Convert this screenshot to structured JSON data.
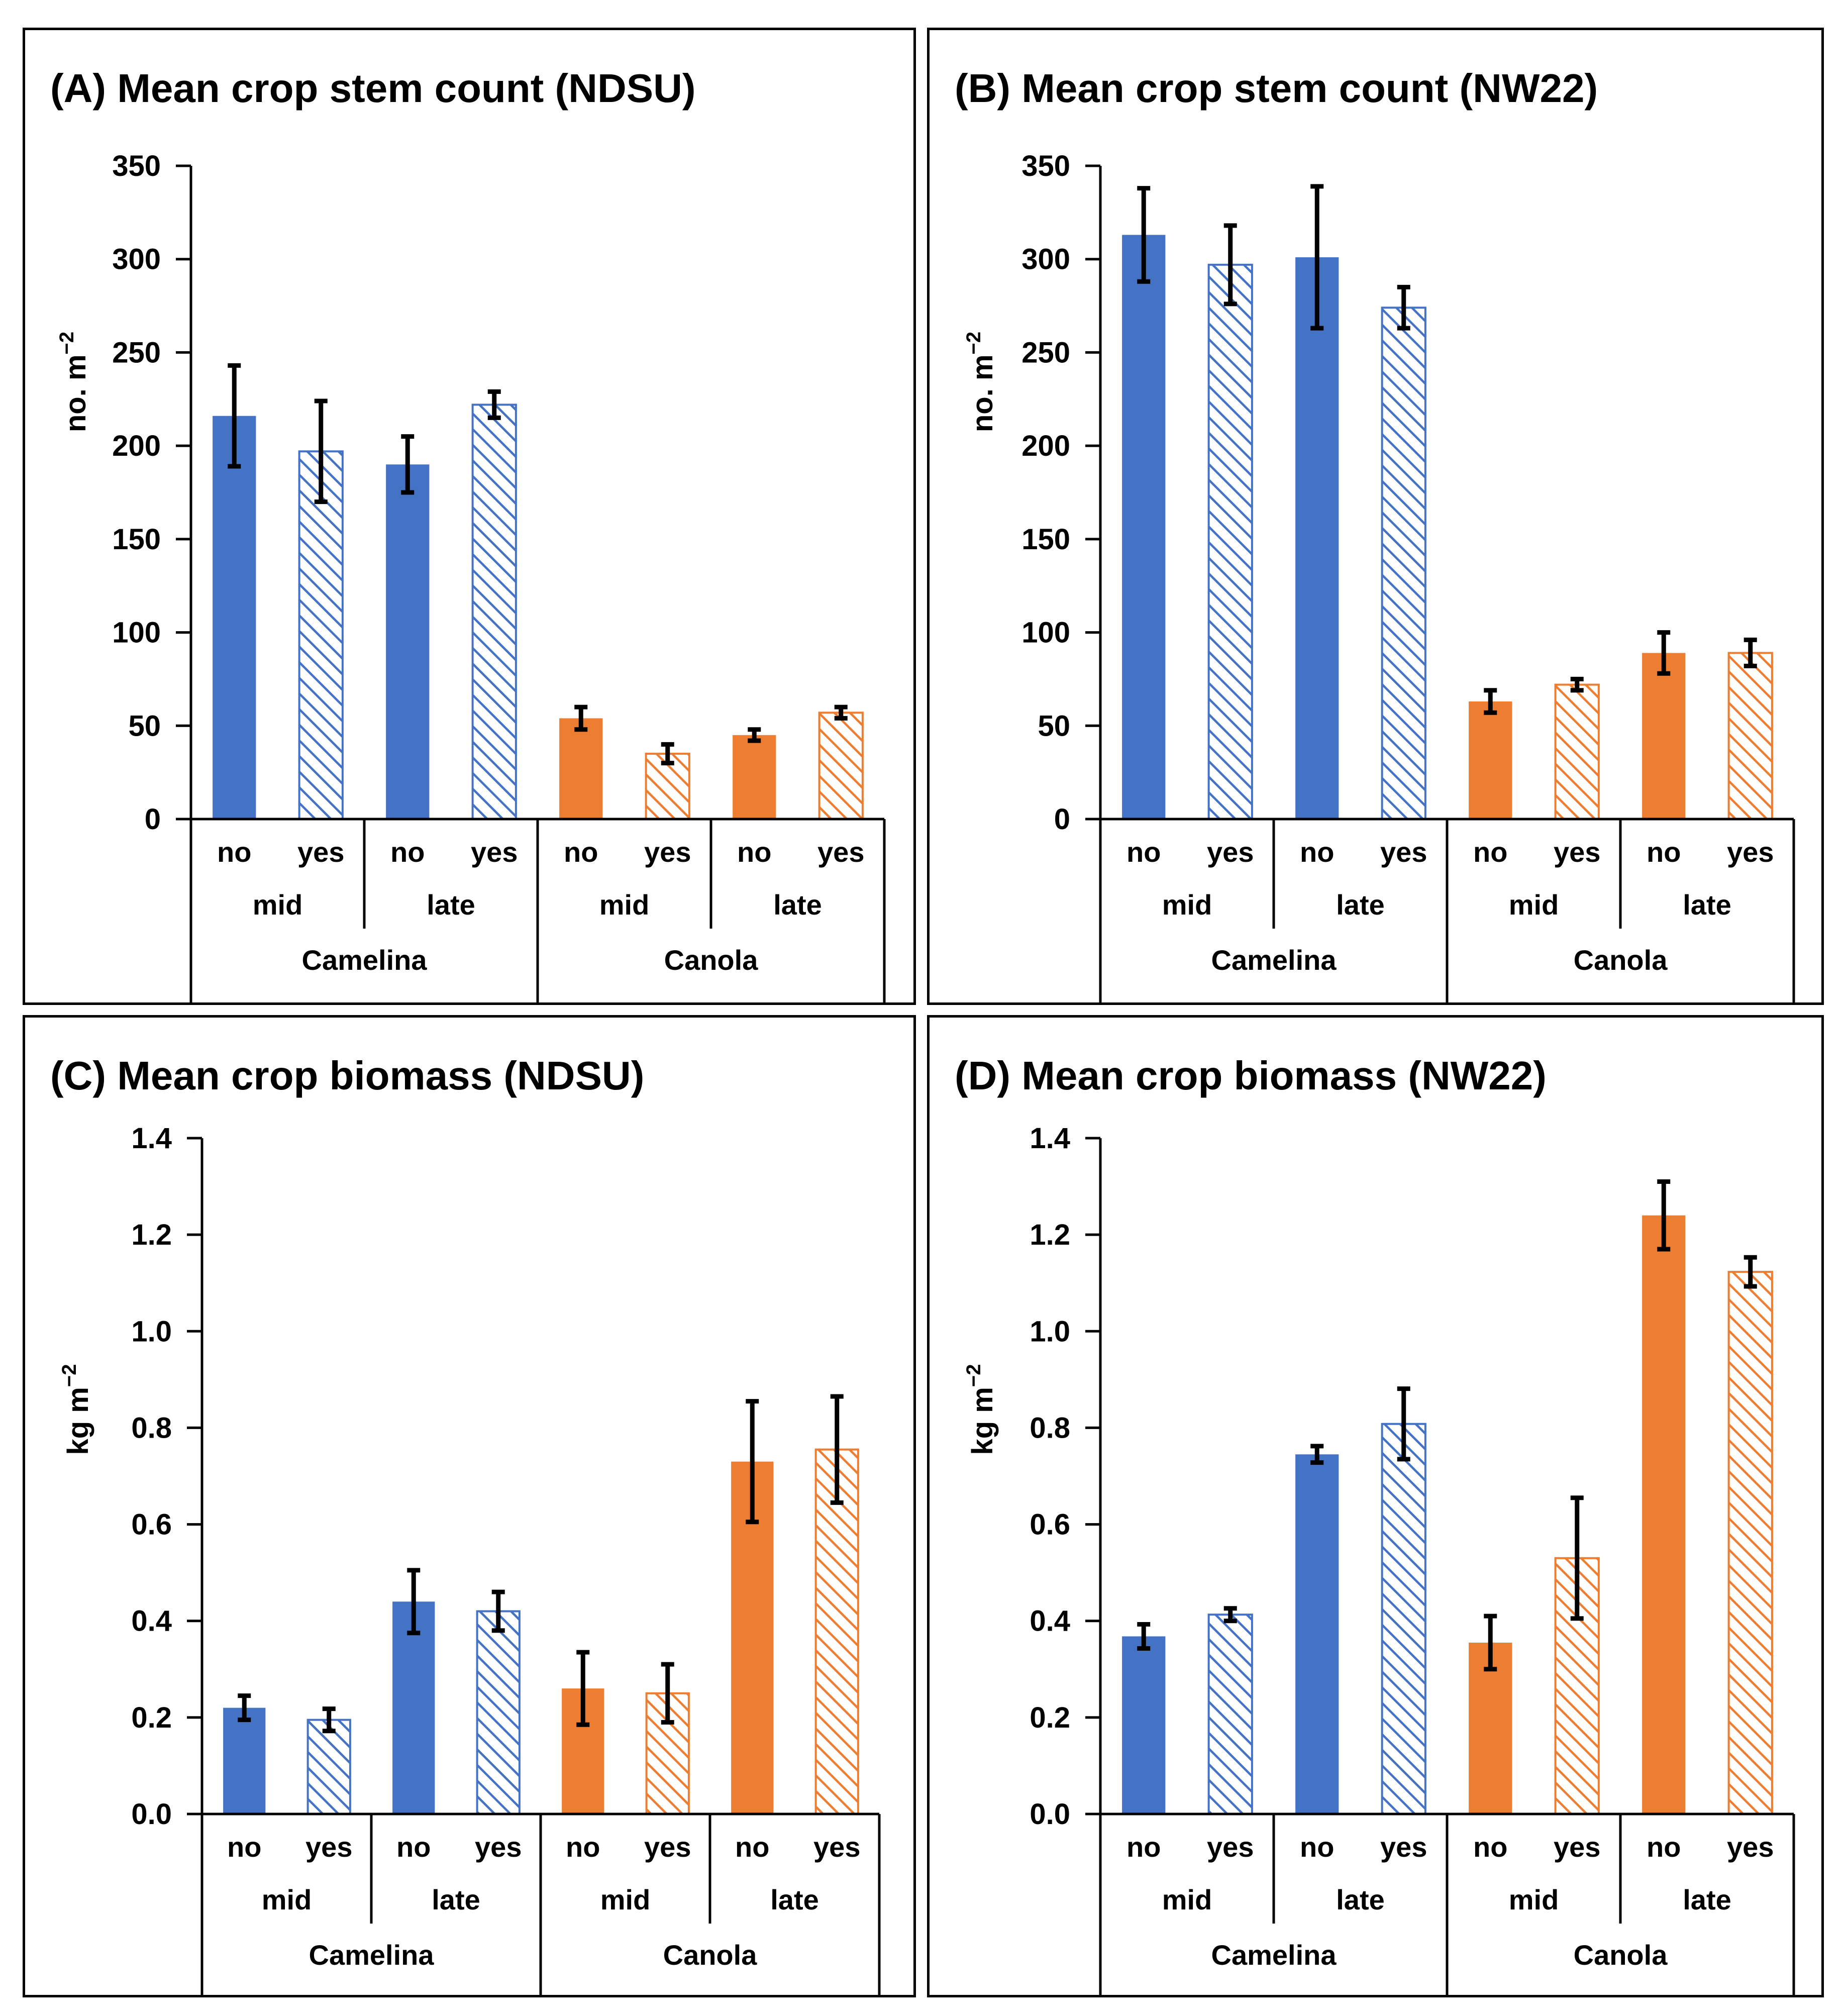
{
  "colors": {
    "camelina": "#4472C4",
    "canola": "#ED7D31",
    "error_bar": "#000000"
  },
  "chart_data": [
    {
      "id": "A",
      "type": "bar",
      "title": "(A) Mean crop stem count (NDSU)",
      "ylabel": "no. m",
      "ylabel_sup": "−2",
      "ylim": [
        0,
        350
      ],
      "yticks": [
        "0",
        "50",
        "100",
        "150",
        "200",
        "250",
        "300",
        "350"
      ],
      "ytick_values": [
        0,
        50,
        100,
        150,
        200,
        250,
        300,
        350
      ],
      "crops": [
        "Camelina",
        "Camelina",
        "Camelina",
        "Camelina",
        "Canola",
        "Canola",
        "Canola",
        "Canola"
      ],
      "timings": [
        "mid",
        "mid",
        "late",
        "late",
        "mid",
        "mid",
        "late",
        "late"
      ],
      "treatments": [
        "no",
        "yes",
        "no",
        "yes",
        "no",
        "yes",
        "no",
        "yes"
      ],
      "values": [
        216,
        197,
        190,
        222,
        54,
        35,
        45,
        57
      ],
      "errors": [
        27,
        27,
        15,
        7,
        6,
        5,
        3,
        3
      ],
      "group_labels": [
        "mid",
        "late",
        "mid",
        "late"
      ],
      "crop_labels": [
        "Camelina",
        "Canola"
      ]
    },
    {
      "id": "B",
      "type": "bar",
      "title": "(B) Mean crop stem count (NW22)",
      "ylabel": "no. m",
      "ylabel_sup": "−2",
      "ylim": [
        0,
        350
      ],
      "yticks": [
        "0",
        "50",
        "100",
        "150",
        "200",
        "250",
        "300",
        "350"
      ],
      "ytick_values": [
        0,
        50,
        100,
        150,
        200,
        250,
        300,
        350
      ],
      "crops": [
        "Camelina",
        "Camelina",
        "Camelina",
        "Camelina",
        "Canola",
        "Canola",
        "Canola",
        "Canola"
      ],
      "timings": [
        "mid",
        "mid",
        "late",
        "late",
        "mid",
        "mid",
        "late",
        "late"
      ],
      "treatments": [
        "no",
        "yes",
        "no",
        "yes",
        "no",
        "yes",
        "no",
        "yes"
      ],
      "values": [
        313,
        297,
        301,
        274,
        63,
        72,
        89,
        89
      ],
      "errors": [
        25,
        21,
        38,
        11,
        6,
        3,
        11,
        7
      ],
      "group_labels": [
        "mid",
        "late",
        "mid",
        "late"
      ],
      "crop_labels": [
        "Camelina",
        "Canola"
      ]
    },
    {
      "id": "C",
      "type": "bar",
      "title": "(C) Mean crop biomass (NDSU)",
      "ylabel": "kg m",
      "ylabel_sup": "−2",
      "ylim": [
        0,
        1.4
      ],
      "yticks": [
        "0.0",
        "0.2",
        "0.4",
        "0.6",
        "0.8",
        "1.0",
        "1.2",
        "1.4"
      ],
      "ytick_values": [
        0,
        0.2,
        0.4,
        0.6,
        0.8,
        1.0,
        1.2,
        1.4
      ],
      "crops": [
        "Camelina",
        "Camelina",
        "Camelina",
        "Camelina",
        "Canola",
        "Canola",
        "Canola",
        "Canola"
      ],
      "timings": [
        "mid",
        "mid",
        "late",
        "late",
        "mid",
        "mid",
        "late",
        "late"
      ],
      "treatments": [
        "no",
        "yes",
        "no",
        "yes",
        "no",
        "yes",
        "no",
        "yes"
      ],
      "values": [
        0.22,
        0.195,
        0.44,
        0.42,
        0.26,
        0.25,
        0.73,
        0.755
      ],
      "errors": [
        0.025,
        0.023,
        0.065,
        0.04,
        0.075,
        0.06,
        0.125,
        0.11
      ],
      "group_labels": [
        "mid",
        "late",
        "mid",
        "late"
      ],
      "crop_labels": [
        "Camelina",
        "Canola"
      ]
    },
    {
      "id": "D",
      "type": "bar",
      "title": "(D) Mean crop biomass (NW22)",
      "ylabel": "kg m",
      "ylabel_sup": "−2",
      "ylim": [
        0,
        1.4
      ],
      "yticks": [
        "0.0",
        "0.2",
        "0.4",
        "0.6",
        "0.8",
        "1.0",
        "1.2",
        "1.4"
      ],
      "ytick_values": [
        0,
        0.2,
        0.4,
        0.6,
        0.8,
        1.0,
        1.2,
        1.4
      ],
      "crops": [
        "Camelina",
        "Camelina",
        "Camelina",
        "Camelina",
        "Canola",
        "Canola",
        "Canola",
        "Canola"
      ],
      "timings": [
        "mid",
        "mid",
        "late",
        "late",
        "mid",
        "mid",
        "late",
        "late"
      ],
      "treatments": [
        "no",
        "yes",
        "no",
        "yes",
        "no",
        "yes",
        "no",
        "yes"
      ],
      "values": [
        0.368,
        0.413,
        0.745,
        0.808,
        0.355,
        0.53,
        1.24,
        1.123
      ],
      "errors": [
        0.025,
        0.013,
        0.017,
        0.073,
        0.055,
        0.125,
        0.07,
        0.03
      ],
      "group_labels": [
        "mid",
        "late",
        "mid",
        "late"
      ],
      "crop_labels": [
        "Camelina",
        "Canola"
      ]
    }
  ]
}
